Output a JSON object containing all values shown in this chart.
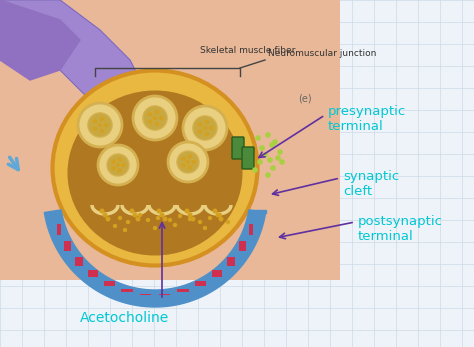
{
  "bg_color": "#edf3f8",
  "grid_color": "#ccdae8",
  "title": "Neuromuscular junction",
  "subtitle": "Skeletal muscle fiber",
  "label_presynaptic": "presynaptic\nterminal",
  "label_synaptic": "synaptic\ncleft",
  "label_postsynaptic": "postsynaptic\nterminal",
  "label_acetylcholine": "Acetocholine",
  "label_color_cyan": "#00c8d4",
  "label_color_purple": "#7040a8",
  "arrow_color": "#6030a0",
  "nerve_purple_light": "#a085d0",
  "nerve_purple_dark": "#7060b0",
  "nerve_purple_mid": "#9070c0",
  "terminal_gold": "#d49020",
  "terminal_gold_light": "#e8b840",
  "terminal_brown": "#a06010",
  "inner_brown": "#b07820",
  "vesicle_tan": "#e8d080",
  "vesicle_tan_dark": "#c8a840",
  "vesicle_ring": "#d4b050",
  "membrane_blue": "#5090c8",
  "membrane_blue_dark": "#3870a8",
  "membrane_red": "#d03050",
  "skin_peach": "#e8b898",
  "skin_peach_dark": "#d8a080",
  "dot_gold": "#d4a020",
  "green_channel": "#4a8a3a",
  "green_channel_dark": "#2a5a1a",
  "nt_dot_green": "#a8d040",
  "blue_arrow": "#60a8d8",
  "bracket_color": "#444444",
  "label_black": "#333333",
  "e_label_color": "#666666"
}
